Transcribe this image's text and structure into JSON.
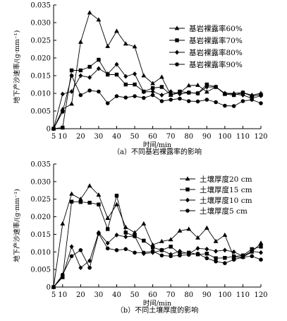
{
  "chart_data": [
    {
      "type": "line",
      "caption": "（a）不同基岩裸露率的影响",
      "xlabel": "时间/min",
      "ylabel": "地下产沙速率/(g·mm⁻¹)",
      "xlim": [
        5,
        120
      ],
      "ylim": [
        0,
        0.035
      ],
      "xticks": [
        5,
        10,
        20,
        30,
        40,
        50,
        60,
        70,
        80,
        90,
        100,
        110,
        120
      ],
      "xtick_labels": [
        "5",
        "10",
        "20",
        "30",
        "40",
        "50",
        "60",
        "70",
        "80",
        "90",
        "100",
        "110",
        "120"
      ],
      "yticks": [
        0,
        0.005,
        0.01,
        0.015,
        0.02,
        0.025,
        0.03,
        0.035
      ],
      "ytick_labels": [
        "0",
        "0.005",
        "0.010",
        "0.015",
        "0.020",
        "0.025",
        "0.030",
        "0.035"
      ],
      "legend_position": "top-right",
      "series": [
        {
          "name": "基岩裸露率60%",
          "marker": "triangle",
          "x": [
            5,
            10,
            15,
            20,
            25,
            30,
            35,
            40,
            45,
            50,
            55,
            60,
            65,
            70,
            75,
            80,
            85,
            90,
            95,
            100,
            105,
            110,
            115,
            120
          ],
          "y": [
            0,
            0.0055,
            0.007,
            0.0245,
            0.0328,
            0.0308,
            0.0233,
            0.0276,
            0.024,
            0.0232,
            0.015,
            0.0128,
            0.0146,
            0.0095,
            0.0102,
            0.0122,
            0.0123,
            0.0104,
            0.0118,
            0.01,
            0.01,
            0.0102,
            0.0095,
            0.01
          ]
        },
        {
          "name": "基岩裸露率70%",
          "marker": "square",
          "x": [
            5,
            10,
            15,
            20,
            25,
            30,
            35,
            40,
            45,
            50,
            55,
            60,
            65,
            70,
            75,
            80,
            85,
            90,
            95,
            100,
            105,
            110,
            115,
            120
          ],
          "y": [
            0,
            0.0003,
            0.0165,
            0.0165,
            0.0175,
            0.0195,
            0.0153,
            0.0153,
            0.0125,
            0.0125,
            0.0105,
            0.0115,
            0.0118,
            0.0096,
            0.0105,
            0.0102,
            0.01,
            0.0125,
            0.0118,
            0.0098,
            0.0095,
            0.0102,
            0.0092,
            0.0096
          ]
        },
        {
          "name": "基岩裸露率80%",
          "marker": "diamond",
          "x": [
            5,
            10,
            15,
            20,
            25,
            30,
            35,
            40,
            45,
            50,
            55,
            60,
            65,
            70,
            75,
            80,
            85,
            90,
            95,
            100,
            105,
            110,
            115,
            120
          ],
          "y": [
            0,
            0.0098,
            0.0105,
            0.015,
            0.0145,
            0.017,
            0.0155,
            0.0182,
            0.0148,
            0.0155,
            0.0104,
            0.0105,
            0.0095,
            0.0105,
            0.0098,
            0.0102,
            0.01,
            0.0118,
            0.0118,
            0.01,
            0.0098,
            0.0095,
            0.0086,
            0.0093
          ]
        },
        {
          "name": "基岩裸露率90%",
          "marker": "circle",
          "x": [
            5,
            10,
            15,
            20,
            25,
            30,
            35,
            40,
            45,
            50,
            55,
            60,
            65,
            70,
            75,
            80,
            85,
            90,
            95,
            100,
            105,
            110,
            115,
            120
          ],
          "y": [
            0,
            0.0048,
            0.015,
            0.0095,
            0.0108,
            0.0105,
            0.0072,
            0.0092,
            0.0088,
            0.0092,
            0.0087,
            0.0095,
            0.0078,
            0.0082,
            0.0085,
            0.0078,
            0.0077,
            0.0082,
            0.0075,
            0.0065,
            0.0064,
            0.0078,
            0.0082,
            0.0072
          ]
        }
      ]
    },
    {
      "type": "line",
      "caption": "（b）不同土壤厚度的影响",
      "xlabel": "时间/min",
      "ylabel": "地下产沙速率/(g·mm⁻¹)",
      "xlim": [
        5,
        120
      ],
      "ylim": [
        0,
        0.035
      ],
      "xticks": [
        5,
        10,
        20,
        30,
        40,
        50,
        60,
        70,
        80,
        90,
        100,
        110,
        120
      ],
      "xtick_labels": [
        "5",
        "10",
        "20",
        "30",
        "40",
        "50",
        "60",
        "70",
        "80",
        "90",
        "100",
        "110",
        "120"
      ],
      "yticks": [
        0,
        0.005,
        0.01,
        0.015,
        0.02,
        0.025,
        0.03,
        0.035
      ],
      "ytick_labels": [
        "0",
        "0.005",
        "0.010",
        "0.015",
        "0.020",
        "0.025",
        "0.030",
        "0.035"
      ],
      "legend_position": "top-right",
      "series": [
        {
          "name": "土壤厚度20 cm",
          "marker": "triangle",
          "x": [
            5,
            10,
            15,
            20,
            25,
            30,
            35,
            40,
            45,
            50,
            55,
            60,
            65,
            70,
            75,
            80,
            85,
            90,
            95,
            100,
            105,
            110,
            115,
            120
          ],
          "y": [
            0,
            0.018,
            0.0265,
            0.025,
            0.0288,
            0.0262,
            0.0196,
            0.0235,
            0.017,
            0.0155,
            0.018,
            0.012,
            0.013,
            0.0135,
            0.016,
            0.0165,
            0.014,
            0.0168,
            0.013,
            0.0148,
            0.0085,
            0.0085,
            0.01,
            0.0125
          ]
        },
        {
          "name": "土壤厚度15 cm",
          "marker": "square",
          "x": [
            5,
            10,
            15,
            20,
            25,
            30,
            35,
            40,
            45,
            50,
            55,
            60,
            65,
            70,
            75,
            80,
            85,
            90,
            95,
            100,
            105,
            110,
            115,
            120
          ],
          "y": [
            0,
            0.0028,
            0.0243,
            0.0242,
            0.024,
            0.0235,
            0.0165,
            0.026,
            0.0155,
            0.0145,
            0.0132,
            0.0113,
            0.0105,
            0.0115,
            0.0095,
            0.0098,
            0.0093,
            0.0095,
            0.0082,
            0.0083,
            0.0087,
            0.009,
            0.0108,
            0.0115
          ]
        },
        {
          "name": "土壤厚度10 cm",
          "marker": "diamond",
          "x": [
            5,
            10,
            15,
            20,
            25,
            30,
            35,
            40,
            45,
            50,
            55,
            60,
            65,
            70,
            75,
            80,
            85,
            90,
            95,
            100,
            105,
            110,
            115,
            120
          ],
          "y": [
            0,
            0.003,
            0.0115,
            0.0055,
            0.0075,
            0.0155,
            0.0125,
            0.0148,
            0.0143,
            0.0145,
            0.0095,
            0.0098,
            0.0105,
            0.0093,
            0.0102,
            0.0095,
            0.011,
            0.0108,
            0.0102,
            0.0105,
            0.01,
            0.0088,
            0.0102,
            0.0098
          ]
        },
        {
          "name": "土壤厚度5 cm",
          "marker": "circle",
          "x": [
            5,
            10,
            15,
            20,
            25,
            30,
            35,
            40,
            45,
            50,
            55,
            60,
            65,
            70,
            75,
            80,
            85,
            90,
            95,
            100,
            105,
            110,
            115,
            120
          ],
          "y": [
            0,
            0.0035,
            0.0088,
            0.0105,
            0.0055,
            0.0152,
            0.011,
            0.0105,
            0.0108,
            0.0098,
            0.0098,
            0.0102,
            0.009,
            0.0088,
            0.009,
            0.0092,
            0.0095,
            0.0082,
            0.0073,
            0.0068,
            0.0078,
            0.0085,
            0.0088,
            0.0078
          ]
        }
      ]
    }
  ]
}
